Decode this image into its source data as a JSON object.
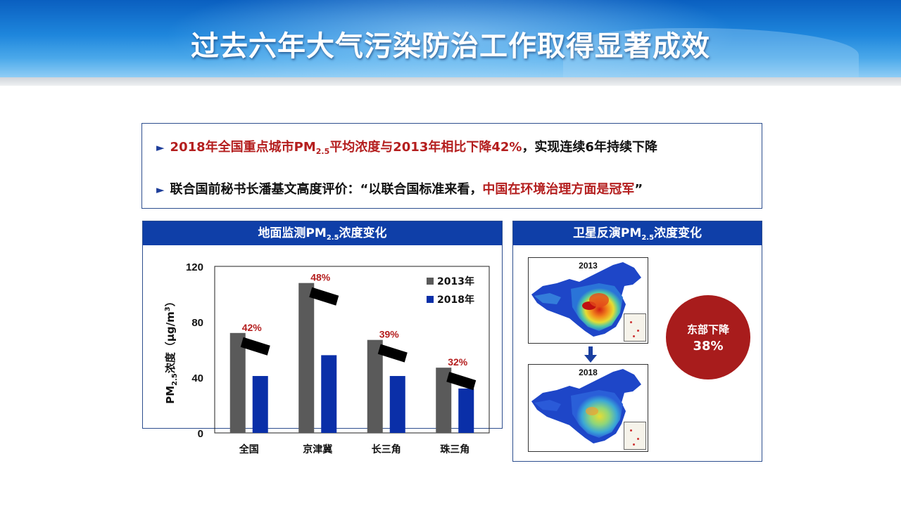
{
  "header": {
    "title": "过去六年大气污染防治工作取得显著成效"
  },
  "summary": {
    "line1": {
      "marker": "►",
      "red_part_a": "2018年全国重点城市PM",
      "red_sub": "2.5",
      "red_part_b": "平均浓度与2013年相比下降42%",
      "black_part": "，实现连续6年持续下降"
    },
    "line2": {
      "marker": "►",
      "black_part": "联合国前秘书长潘基文高度评价：“以联合国标准来看，",
      "red_part": "中国在环境治理方面是冠军",
      "end_quote": "”"
    }
  },
  "ground_panel": {
    "title_a": "地面监测PM",
    "title_sub": "2.5",
    "title_b": "浓度变化"
  },
  "satellite_panel": {
    "title_a": "卫星反演PM",
    "title_sub": "2.5",
    "title_b": "浓度变化",
    "map_top_year": "2013",
    "map_bottom_year": "2018",
    "badge_line1": "东部下降",
    "badge_line2": "38%"
  },
  "colors": {
    "header_blue": "#0f3fa8",
    "accent_red": "#b41e1e",
    "bar_2013": "#5a5a5a",
    "bar_2018": "#0a2fa8",
    "badge_red": "#a81c1c"
  },
  "chart_data": {
    "type": "bar",
    "categories": [
      "全国",
      "京津冀",
      "长三角",
      "珠三角"
    ],
    "series": [
      {
        "name": "2013年",
        "values": [
          72,
          108,
          67,
          47
        ]
      },
      {
        "name": "2018年",
        "values": [
          41,
          56,
          41,
          32
        ]
      }
    ],
    "decrease_labels": [
      "42%",
      "48%",
      "39%",
      "32%"
    ],
    "ylabel_a": "PM",
    "ylabel_sub": "2.5",
    "ylabel_b": "浓度（μg/m",
    "ylabel_sup": "3",
    "ylabel_c": "）",
    "ylim": [
      0,
      120
    ],
    "yticks": [
      0,
      40,
      80,
      120
    ],
    "legend_position": "top-right",
    "grid": false
  }
}
